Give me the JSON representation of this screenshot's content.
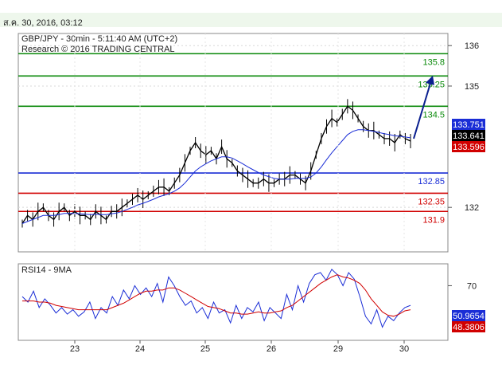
{
  "header": {
    "date": "ส.ค. 30, 2016, 03:12"
  },
  "chart_data": [
    {
      "type": "line",
      "title": "GBP/JPY - 30min - 5:11:40 AM (UTC+2)",
      "subtitle": "Research © 2016 TRADING CENTRAL",
      "x_ticks": [
        "23",
        "24",
        "25",
        "26",
        "29",
        "30"
      ],
      "y_ticks": [
        132,
        135,
        136
      ],
      "y_tick_labels": [
        "132",
        "135",
        "136"
      ],
      "ylim": [
        130.9,
        136.3
      ],
      "series": [
        {
          "color": "#000000",
          "values": [
            131.6,
            131.8,
            131.7,
            131.9,
            132.0,
            131.8,
            131.7,
            131.9,
            132.0,
            131.8,
            131.9,
            131.8,
            131.8,
            131.7,
            131.9,
            131.8,
            131.7,
            131.9,
            131.9,
            132.0,
            132.1,
            132.2,
            132.3,
            132.2,
            132.3,
            132.4,
            132.5,
            132.5,
            132.4,
            132.6,
            132.8,
            133.1,
            133.4,
            133.6,
            133.4,
            133.3,
            133.4,
            133.2,
            133.5,
            133.2,
            133.1,
            132.9,
            132.8,
            132.7,
            132.6,
            132.6,
            132.7,
            132.6,
            132.6,
            132.7,
            132.7,
            132.8,
            132.8,
            132.7,
            132.6,
            132.9,
            133.3,
            133.7,
            134.0,
            134.2,
            134.1,
            134.3,
            134.5,
            134.4,
            134.2,
            134.0,
            133.9,
            133.9,
            133.8,
            133.7,
            133.7,
            133.6,
            133.8,
            133.7,
            133.64
          ]
        },
        {
          "color": "#1a2dd6",
          "values": [
            131.6,
            131.65,
            131.7,
            131.75,
            131.8,
            131.8,
            131.8,
            131.82,
            131.85,
            131.85,
            131.85,
            131.84,
            131.83,
            131.82,
            131.83,
            131.82,
            131.82,
            131.84,
            131.86,
            131.9,
            131.95,
            132.0,
            132.06,
            132.1,
            132.15,
            132.2,
            132.26,
            132.3,
            132.34,
            132.4,
            132.48,
            132.6,
            132.75,
            132.9,
            133.0,
            133.08,
            133.15,
            133.2,
            133.25,
            133.25,
            133.22,
            133.15,
            133.08,
            133.0,
            132.93,
            132.86,
            132.8,
            132.76,
            132.72,
            132.7,
            132.7,
            132.7,
            132.72,
            132.72,
            132.72,
            132.75,
            132.85,
            133.0,
            133.18,
            133.35,
            133.5,
            133.65,
            133.8,
            133.88,
            133.92,
            133.92,
            133.9,
            133.88,
            133.85,
            133.82,
            133.8,
            133.77,
            133.76,
            133.74,
            133.72
          ]
        }
      ],
      "levels": [
        {
          "label": "135.8",
          "value": 135.8,
          "color": "#0b8a0b"
        },
        {
          "label": "135.25",
          "value": 135.25,
          "color": "#0b8a0b"
        },
        {
          "label": "134.5",
          "value": 134.5,
          "color": "#0b8a0b"
        },
        {
          "label": "132.85",
          "value": 132.85,
          "color": "#1a2dd6"
        },
        {
          "label": "132.35",
          "value": 132.35,
          "color": "#d10000"
        },
        {
          "label": "131.9",
          "value": 131.9,
          "color": "#d10000"
        }
      ],
      "price_tags": [
        {
          "label": "133.751",
          "value": 133.751,
          "bg": "#1a2dd6",
          "fg": "#ffffff"
        },
        {
          "label": "133.641",
          "value": 133.641,
          "bg": "#000000",
          "fg": "#ffffff"
        },
        {
          "label": "133.596",
          "value": 133.596,
          "bg": "#d10000",
          "fg": "#ffffff"
        }
      ],
      "forecast_arrow": {
        "from": 133.7,
        "to": 135.2,
        "color": "#0a1f8f"
      }
    },
    {
      "type": "line",
      "title": "RSI14 - 9MA",
      "y_ticks": [
        70
      ],
      "y_tick_labels": [
        "70"
      ],
      "ylim": [
        20,
        90
      ],
      "series": [
        {
          "color": "#1a2dd6",
          "values": [
            60,
            55,
            65,
            50,
            58,
            52,
            45,
            50,
            44,
            48,
            42,
            46,
            55,
            40,
            50,
            45,
            60,
            52,
            66,
            58,
            70,
            62,
            68,
            60,
            72,
            55,
            78,
            70,
            60,
            52,
            56,
            45,
            50,
            40,
            55,
            45,
            48,
            36,
            52,
            40,
            50,
            46,
            55,
            38,
            50,
            45,
            40,
            62,
            48,
            70,
            55,
            72,
            80,
            82,
            75,
            85,
            80,
            70,
            82,
            76,
            60,
            42,
            35,
            48,
            32,
            42,
            38,
            45,
            50,
            52
          ]
        },
        {
          "color": "#d10000",
          "values": [
            56,
            56,
            56,
            55,
            55,
            54,
            52,
            51,
            50,
            49,
            48,
            48,
            48,
            48,
            48,
            48,
            50,
            52,
            54,
            57,
            60,
            63,
            65,
            65,
            66,
            66,
            68,
            68,
            66,
            63,
            60,
            57,
            54,
            51,
            50,
            49,
            47,
            45,
            45,
            44,
            44,
            45,
            46,
            45,
            45,
            46,
            47,
            50,
            52,
            56,
            60,
            64,
            68,
            72,
            75,
            78,
            80,
            78,
            77,
            75,
            72,
            66,
            58,
            52,
            46,
            43,
            42,
            44,
            47,
            48
          ]
        }
      ],
      "price_tags": [
        {
          "label": "50.9654",
          "value": 50.9654,
          "bg": "#1a2dd6",
          "fg": "#ffffff"
        },
        {
          "label": "48.3806",
          "value": 48.3806,
          "bg": "#d10000",
          "fg": "#ffffff"
        }
      ]
    }
  ]
}
